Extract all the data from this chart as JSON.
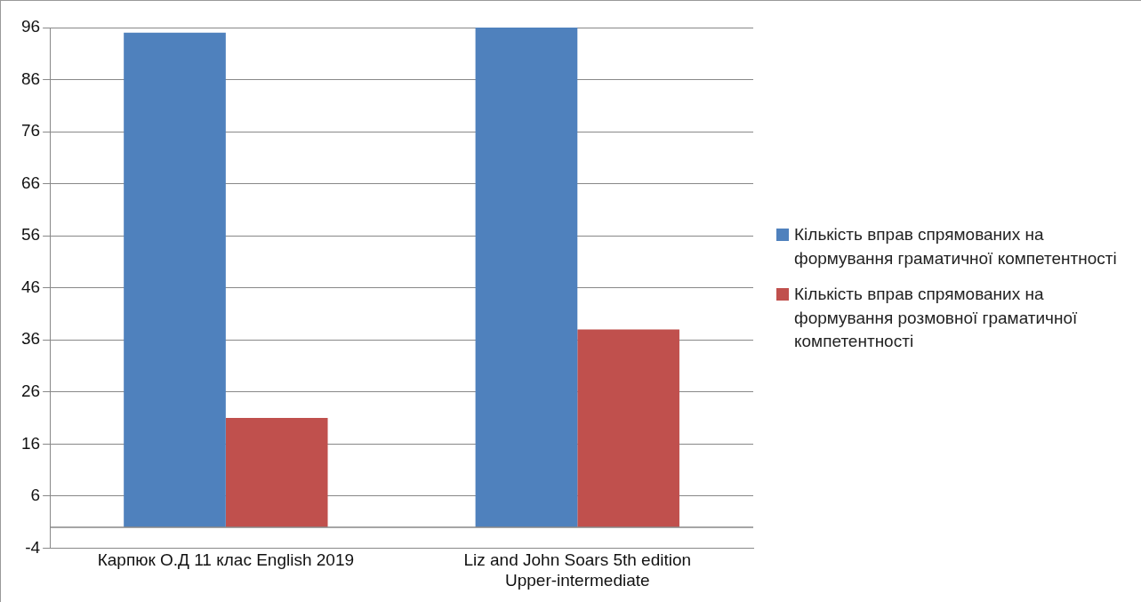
{
  "chart_data": {
    "type": "bar",
    "categories": [
      "Карпюк О.Д 11 клас English 2019",
      "Liz and John Soars 5th edition Upper-intermediate"
    ],
    "series": [
      {
        "name": "Кількість вправ спрямованих на формування граматичної компетентності",
        "color": "#4f81bd",
        "values": [
          95,
          96
        ]
      },
      {
        "name": "Кількість вправ спрямованих на формування розмовної граматичної компетентності",
        "color": "#c0504d",
        "values": [
          21,
          38
        ]
      }
    ],
    "ylim": [
      -4,
      96
    ],
    "yticks": [
      -4,
      6,
      16,
      26,
      36,
      46,
      56,
      66,
      76,
      86,
      96
    ],
    "grid": "y",
    "legend": "right"
  }
}
